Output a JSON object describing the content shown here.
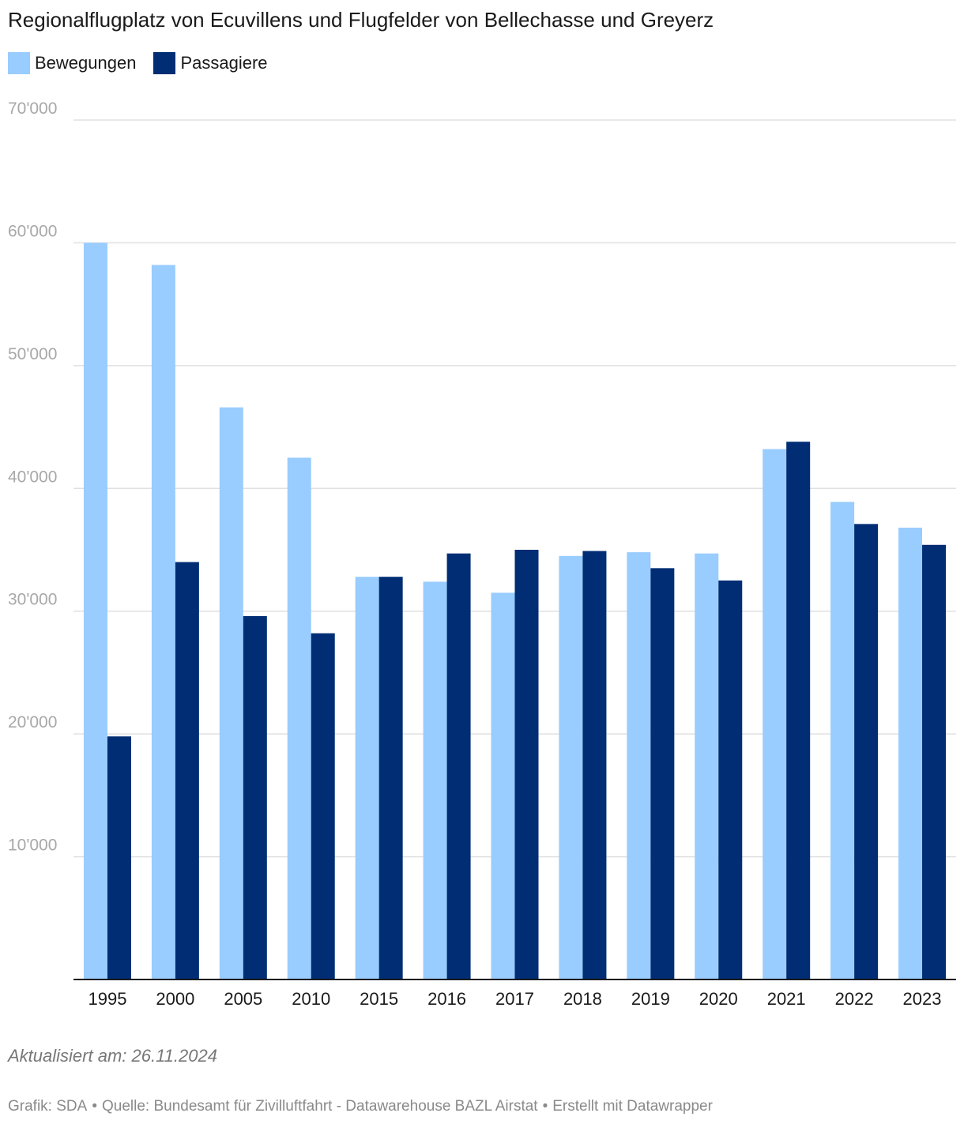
{
  "chart_data": {
    "type": "bar",
    "title": "Regionalflugplatz von Ecuvillens und Flugfelder von Bellechasse und Greyerz",
    "categories": [
      "1995",
      "2000",
      "2005",
      "2010",
      "2015",
      "2016",
      "2017",
      "2018",
      "2019",
      "2020",
      "2021",
      "2022",
      "2023"
    ],
    "series": [
      {
        "name": "Bewegungen",
        "color": "#99ccff",
        "values": [
          60000,
          58200,
          46600,
          42500,
          32800,
          32400,
          31500,
          34500,
          34800,
          34700,
          43200,
          38900,
          36800
        ]
      },
      {
        "name": "Passagiere",
        "color": "#002d74",
        "values": [
          19800,
          34000,
          29600,
          28200,
          32800,
          34700,
          35000,
          34900,
          33500,
          32500,
          43800,
          37100,
          35400
        ]
      }
    ],
    "yticks": [
      10000,
      20000,
      30000,
      40000,
      50000,
      60000,
      70000
    ],
    "ytick_labels": [
      "10'000",
      "20'000",
      "30'000",
      "40'000",
      "50'000",
      "60'000",
      "70'000"
    ],
    "ylim": [
      0,
      70000
    ],
    "xlabel": "",
    "ylabel": "",
    "grid": true,
    "legend_position": "top-left",
    "gridline_color": "#e0e0e0",
    "axis_color": "#1a1a1a"
  },
  "footer": {
    "updated": "Aktualisiert am: 26.11.2024",
    "grafik": "Grafik: SDA",
    "separator": "•",
    "quelle": "Quelle: Bundesamt für Zivilluftfahrt - Datawarehouse BAZL Airstat",
    "erstellt": "Erstellt mit Datawrapper"
  }
}
